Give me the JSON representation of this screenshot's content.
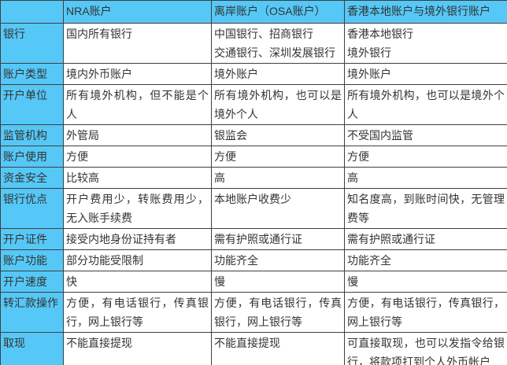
{
  "theme": {
    "accent_color": "#55C8F7",
    "border_color": "#3F3F3F",
    "text_color": "#333333"
  },
  "table": {
    "columns": [
      "",
      "NRA账户",
      "离岸账户（OSA账户）",
      "香港本地账户与境外银行账户"
    ],
    "rows": [
      {
        "label": "银行",
        "cells": [
          "国内所有银行",
          "中国银行、招商银行\n交通银行、深圳发展银行",
          "香港本地银行\n境外银行"
        ]
      },
      {
        "label": "账户类型",
        "cells": [
          "境内外币账户",
          "境外账户",
          "境外账户"
        ]
      },
      {
        "label": "开户单位",
        "cells": [
          "所有境外机构，但不能是个人",
          "所有境外机构，也可以是境外个人",
          "所有境外机构，也可以是境外个人"
        ]
      },
      {
        "label": "监管机构",
        "cells": [
          "外管局",
          "银监会",
          "不受国内监管"
        ]
      },
      {
        "label": "账户使用",
        "cells": [
          "方便",
          "方便",
          "方便"
        ]
      },
      {
        "label": "资金安全",
        "cells": [
          "比较高",
          "高",
          "高"
        ]
      },
      {
        "label": "银行优点",
        "cells": [
          "开户费用少，转账费用少，无入账手续费",
          "本地账户收费少",
          "知名度高，到账时间快，无管理费等"
        ]
      },
      {
        "label": "开户证件",
        "cells": [
          "接受内地身份证持有者",
          "需有护照或通行证",
          "需有护照或通行证"
        ]
      },
      {
        "label": "账户功能",
        "cells": [
          "部分功能受限制",
          "功能齐全",
          "功能齐全"
        ]
      },
      {
        "label": "开户速度",
        "cells": [
          "快",
          "慢",
          "慢"
        ]
      },
      {
        "label": "转汇款操作",
        "cells": [
          "方便，有电话银行，传真银行，网上银行等",
          "方便，有电话银行，传真银行，网上银行等",
          "方便，有电话银行，传真银行，网上银行等"
        ]
      },
      {
        "label": "取现",
        "cells": [
          "不能直接提现",
          "不能直接提现",
          "可直接取现，也可以发指令给银行，将款项打到个人外币帐户"
        ]
      }
    ]
  }
}
